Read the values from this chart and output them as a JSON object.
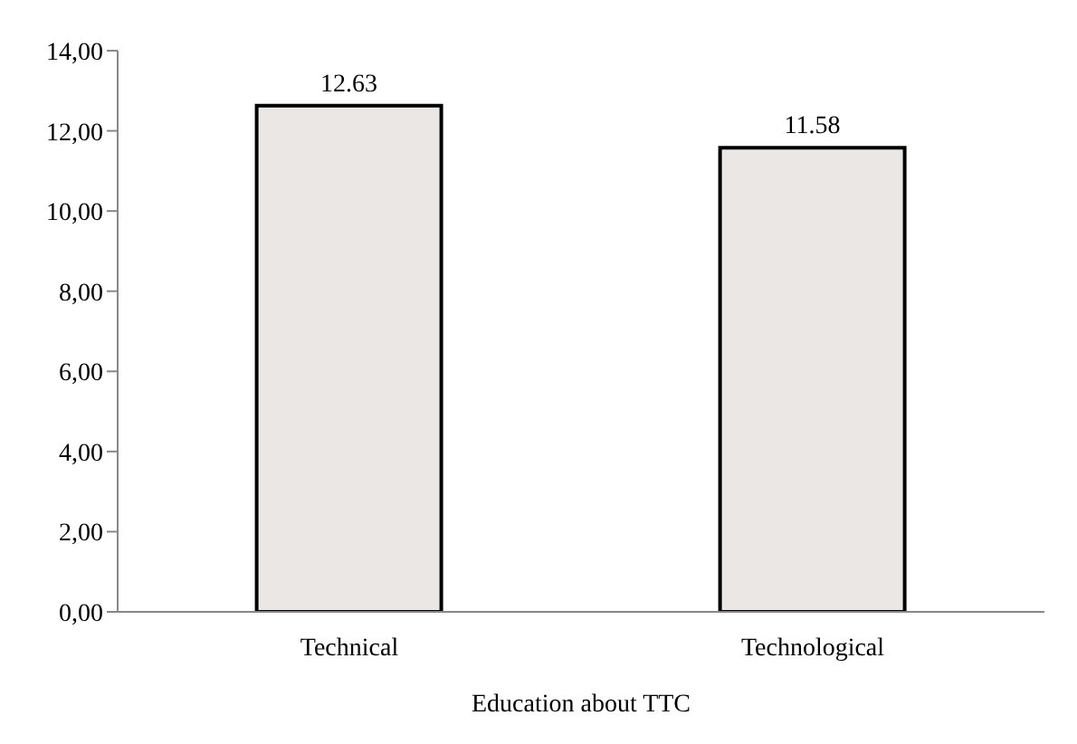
{
  "chart_data": {
    "type": "bar",
    "xlabel": "Education about TTC",
    "categories": [
      "Technical",
      "Technological"
    ],
    "values": [
      12.63,
      11.58
    ],
    "color": "#ebe7e4",
    "ylim": [
      0,
      14
    ],
    "yticks": [
      {
        "value": 0,
        "label": "0,00"
      },
      {
        "value": 2,
        "label": "2,00"
      },
      {
        "value": 4,
        "label": "4,00"
      },
      {
        "value": 6,
        "label": "6,00"
      },
      {
        "value": 8,
        "label": "8,00"
      },
      {
        "value": 10,
        "label": "10,00"
      },
      {
        "value": 12,
        "label": "12,00"
      },
      {
        "value": 14,
        "label": "14,00"
      }
    ],
    "data_labels": true
  }
}
